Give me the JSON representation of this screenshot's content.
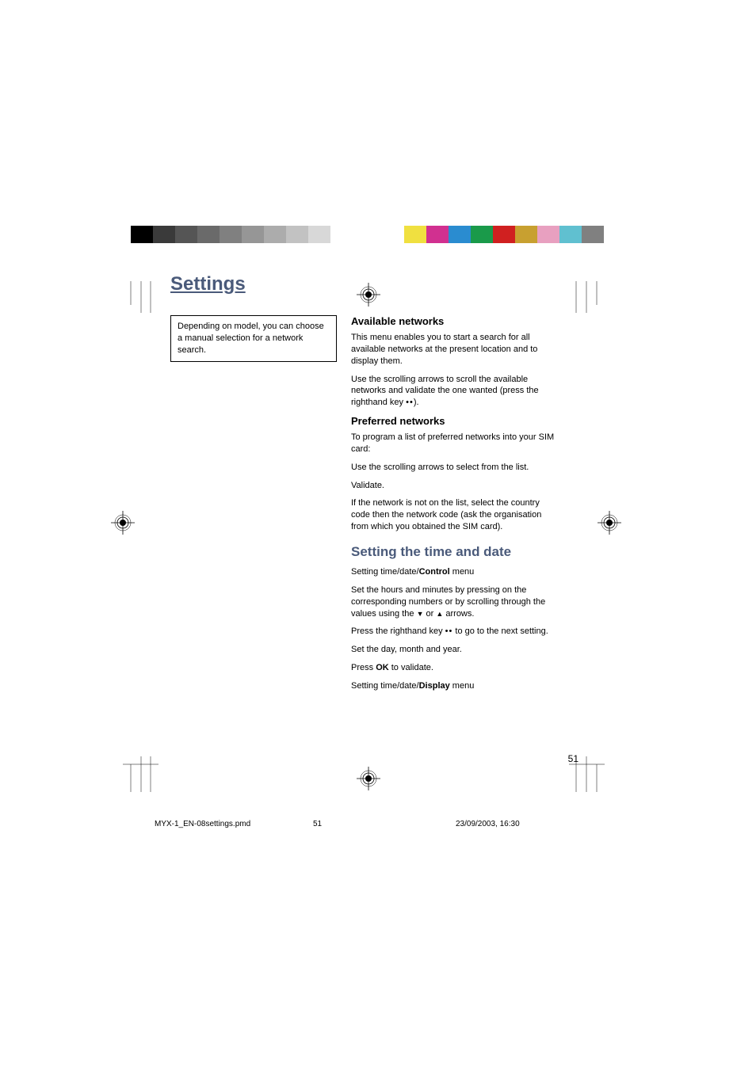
{
  "page_title": "Settings",
  "note_box": "Depending on model, you can choose a manual selection for a network search.",
  "sections": {
    "available_networks": {
      "heading": "Available networks",
      "p1": "This menu enables you to start a search for all available networks at the present location and to display them.",
      "p2_a": "Use the scrolling arrows to scroll the available networks and validate the one wanted (press the righthand key ",
      "p2_b": ")."
    },
    "preferred_networks": {
      "heading": "Preferred networks",
      "p1": "To program a list of preferred networks into your SIM card:",
      "p2": "Use the scrolling arrows to select from the list.",
      "p3": "Validate.",
      "p4": "If the network is not on the list, select the country code then the network code (ask the organisation from which you obtained the SIM card)."
    },
    "time_date": {
      "heading": "Setting the time and date",
      "p1_a": "Setting time/date/",
      "p1_b": "Control",
      "p1_c": " menu",
      "p2_a": "Set the hours and minutes by pressing on the corresponding numbers or by scrolling through the values using the ",
      "p2_b": " or ",
      "p2_c": " arrows.",
      "p3_a": "Press the righthand key ",
      "p3_b": " to go to the next setting.",
      "p4": "Set the day, month and year.",
      "p5_a": "Press ",
      "p5_b": "OK",
      "p5_c": " to validate.",
      "p6_a": "Setting time/date/",
      "p6_b": "Display",
      "p6_c": " menu"
    }
  },
  "page_number": "51",
  "footer": {
    "file": "MYX-1_EN-08settings.pmd",
    "page": "51",
    "date": "23/09/2003, 16:30"
  },
  "color_bars": {
    "left": [
      "#000000",
      "#3a3a3a",
      "#555555",
      "#6a6a6a",
      "#808080",
      "#969696",
      "#acacac",
      "#c2c2c2",
      "#d8d8d8",
      "#ffffff"
    ],
    "right": [
      "#f0e040",
      "#d13090",
      "#2a8cd0",
      "#1a9a4a",
      "#d02020",
      "#c8a030",
      "#e8a0c0",
      "#60c0d0",
      "#808080"
    ]
  },
  "title_color": "#4a5a7a",
  "body_font_size": 11
}
